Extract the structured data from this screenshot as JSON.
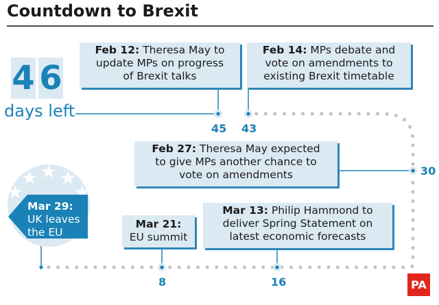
{
  "title": "Countdown to Brexit",
  "countdown": {
    "digit1": "4",
    "digit2": "6",
    "caption": "days left"
  },
  "events": {
    "feb12": {
      "date": "Feb 12:",
      "line1": " Theresa May to",
      "line2": "update MPs on progress",
      "line3": "of Brexit talks"
    },
    "feb14": {
      "date": "Feb 14:",
      "line1": " MPs debate and",
      "line2": "vote on amendments to",
      "line3": "existing Brexit timetable"
    },
    "feb27": {
      "date": "Feb 27:",
      "line1": " Theresa May expected",
      "line2": "to give MPs another chance to",
      "line3": "vote on amendments"
    },
    "mar21": {
      "date": "Mar 21:",
      "line2": "EU summit"
    },
    "mar13": {
      "date": "Mar 13:",
      "line1": " Philip Hammond to",
      "line2": "deliver Spring Statement on",
      "line3": "latest economic forecasts"
    },
    "mar29": {
      "date": "Mar 29:",
      "line2": "UK leaves",
      "line3": "the EU"
    }
  },
  "markers": {
    "m45": "45",
    "m43": "43",
    "m30": "30",
    "m8": "8",
    "m16": "16"
  },
  "logo": "PA",
  "colors": {
    "accent": "#1a82b7",
    "box": "#dbe9f3",
    "dots": "#c2c2c2",
    "logo": "#e1261c"
  }
}
